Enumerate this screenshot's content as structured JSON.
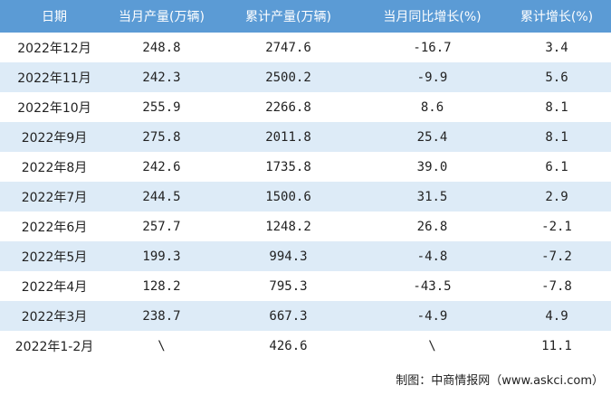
{
  "table": {
    "columns": [
      "日期",
      "当月产量(万辆)",
      "累计产量(万辆)",
      "当月同比增长(%)",
      "累计增长(%)"
    ],
    "rows": [
      [
        "2022年12月",
        "248.8",
        "2747.6",
        "-16.7",
        "3.4"
      ],
      [
        "2022年11月",
        "242.3",
        "2500.2",
        "-9.9",
        "5.6"
      ],
      [
        "2022年10月",
        "255.9",
        "2266.8",
        "8.6",
        "8.1"
      ],
      [
        "2022年9月",
        "275.8",
        "2011.8",
        "25.4",
        "8.1"
      ],
      [
        "2022年8月",
        "242.6",
        "1735.8",
        "39.0",
        "6.1"
      ],
      [
        "2022年7月",
        "244.5",
        "1500.6",
        "31.5",
        "2.9"
      ],
      [
        "2022年6月",
        "257.7",
        "1248.2",
        "26.8",
        "-2.1"
      ],
      [
        "2022年5月",
        "199.3",
        "994.3",
        "-4.8",
        "-7.2"
      ],
      [
        "2022年4月",
        "128.2",
        "795.3",
        "-43.5",
        "-7.8"
      ],
      [
        "2022年3月",
        "238.7",
        "667.3",
        "-4.9",
        "4.9"
      ],
      [
        "2022年1-2月",
        "\\",
        "426.6",
        "\\",
        "11.1"
      ]
    ]
  },
  "footer": "制图：中商情报网（www.askci.com）"
}
